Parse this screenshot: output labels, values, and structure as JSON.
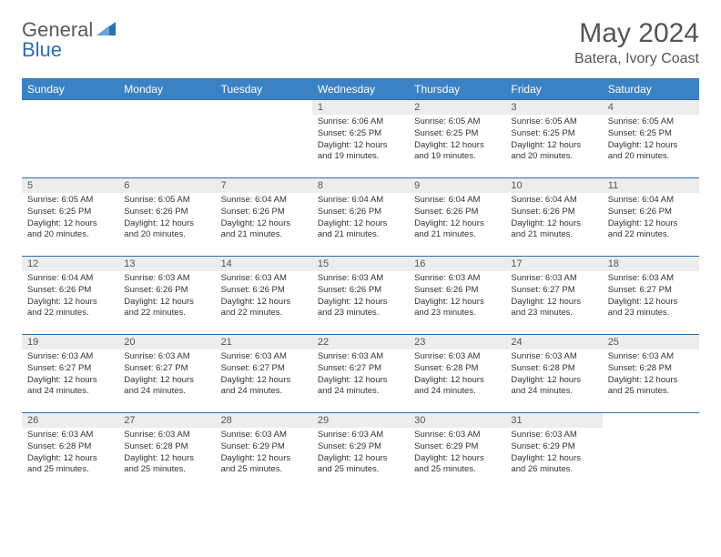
{
  "brand": {
    "part1": "General",
    "part2": "Blue",
    "color_general": "#5a5a5a",
    "color_blue": "#2f6fb0",
    "icon_color": "#2f6fb0"
  },
  "title": "May 2024",
  "location": "Batera, Ivory Coast",
  "header_bg": "#3b82c4",
  "header_text_color": "#ffffff",
  "daynum_bg": "#ededed",
  "border_color": "#2f6fb0",
  "weekdays": [
    "Sunday",
    "Monday",
    "Tuesday",
    "Wednesday",
    "Thursday",
    "Friday",
    "Saturday"
  ],
  "weeks": [
    [
      null,
      null,
      null,
      {
        "n": "1",
        "sr": "Sunrise: 6:06 AM",
        "ss": "Sunset: 6:25 PM",
        "dl1": "Daylight: 12 hours",
        "dl2": "and 19 minutes."
      },
      {
        "n": "2",
        "sr": "Sunrise: 6:05 AM",
        "ss": "Sunset: 6:25 PM",
        "dl1": "Daylight: 12 hours",
        "dl2": "and 19 minutes."
      },
      {
        "n": "3",
        "sr": "Sunrise: 6:05 AM",
        "ss": "Sunset: 6:25 PM",
        "dl1": "Daylight: 12 hours",
        "dl2": "and 20 minutes."
      },
      {
        "n": "4",
        "sr": "Sunrise: 6:05 AM",
        "ss": "Sunset: 6:25 PM",
        "dl1": "Daylight: 12 hours",
        "dl2": "and 20 minutes."
      }
    ],
    [
      {
        "n": "5",
        "sr": "Sunrise: 6:05 AM",
        "ss": "Sunset: 6:25 PM",
        "dl1": "Daylight: 12 hours",
        "dl2": "and 20 minutes."
      },
      {
        "n": "6",
        "sr": "Sunrise: 6:05 AM",
        "ss": "Sunset: 6:26 PM",
        "dl1": "Daylight: 12 hours",
        "dl2": "and 20 minutes."
      },
      {
        "n": "7",
        "sr": "Sunrise: 6:04 AM",
        "ss": "Sunset: 6:26 PM",
        "dl1": "Daylight: 12 hours",
        "dl2": "and 21 minutes."
      },
      {
        "n": "8",
        "sr": "Sunrise: 6:04 AM",
        "ss": "Sunset: 6:26 PM",
        "dl1": "Daylight: 12 hours",
        "dl2": "and 21 minutes."
      },
      {
        "n": "9",
        "sr": "Sunrise: 6:04 AM",
        "ss": "Sunset: 6:26 PM",
        "dl1": "Daylight: 12 hours",
        "dl2": "and 21 minutes."
      },
      {
        "n": "10",
        "sr": "Sunrise: 6:04 AM",
        "ss": "Sunset: 6:26 PM",
        "dl1": "Daylight: 12 hours",
        "dl2": "and 21 minutes."
      },
      {
        "n": "11",
        "sr": "Sunrise: 6:04 AM",
        "ss": "Sunset: 6:26 PM",
        "dl1": "Daylight: 12 hours",
        "dl2": "and 22 minutes."
      }
    ],
    [
      {
        "n": "12",
        "sr": "Sunrise: 6:04 AM",
        "ss": "Sunset: 6:26 PM",
        "dl1": "Daylight: 12 hours",
        "dl2": "and 22 minutes."
      },
      {
        "n": "13",
        "sr": "Sunrise: 6:03 AM",
        "ss": "Sunset: 6:26 PM",
        "dl1": "Daylight: 12 hours",
        "dl2": "and 22 minutes."
      },
      {
        "n": "14",
        "sr": "Sunrise: 6:03 AM",
        "ss": "Sunset: 6:26 PM",
        "dl1": "Daylight: 12 hours",
        "dl2": "and 22 minutes."
      },
      {
        "n": "15",
        "sr": "Sunrise: 6:03 AM",
        "ss": "Sunset: 6:26 PM",
        "dl1": "Daylight: 12 hours",
        "dl2": "and 23 minutes."
      },
      {
        "n": "16",
        "sr": "Sunrise: 6:03 AM",
        "ss": "Sunset: 6:26 PM",
        "dl1": "Daylight: 12 hours",
        "dl2": "and 23 minutes."
      },
      {
        "n": "17",
        "sr": "Sunrise: 6:03 AM",
        "ss": "Sunset: 6:27 PM",
        "dl1": "Daylight: 12 hours",
        "dl2": "and 23 minutes."
      },
      {
        "n": "18",
        "sr": "Sunrise: 6:03 AM",
        "ss": "Sunset: 6:27 PM",
        "dl1": "Daylight: 12 hours",
        "dl2": "and 23 minutes."
      }
    ],
    [
      {
        "n": "19",
        "sr": "Sunrise: 6:03 AM",
        "ss": "Sunset: 6:27 PM",
        "dl1": "Daylight: 12 hours",
        "dl2": "and 24 minutes."
      },
      {
        "n": "20",
        "sr": "Sunrise: 6:03 AM",
        "ss": "Sunset: 6:27 PM",
        "dl1": "Daylight: 12 hours",
        "dl2": "and 24 minutes."
      },
      {
        "n": "21",
        "sr": "Sunrise: 6:03 AM",
        "ss": "Sunset: 6:27 PM",
        "dl1": "Daylight: 12 hours",
        "dl2": "and 24 minutes."
      },
      {
        "n": "22",
        "sr": "Sunrise: 6:03 AM",
        "ss": "Sunset: 6:27 PM",
        "dl1": "Daylight: 12 hours",
        "dl2": "and 24 minutes."
      },
      {
        "n": "23",
        "sr": "Sunrise: 6:03 AM",
        "ss": "Sunset: 6:28 PM",
        "dl1": "Daylight: 12 hours",
        "dl2": "and 24 minutes."
      },
      {
        "n": "24",
        "sr": "Sunrise: 6:03 AM",
        "ss": "Sunset: 6:28 PM",
        "dl1": "Daylight: 12 hours",
        "dl2": "and 24 minutes."
      },
      {
        "n": "25",
        "sr": "Sunrise: 6:03 AM",
        "ss": "Sunset: 6:28 PM",
        "dl1": "Daylight: 12 hours",
        "dl2": "and 25 minutes."
      }
    ],
    [
      {
        "n": "26",
        "sr": "Sunrise: 6:03 AM",
        "ss": "Sunset: 6:28 PM",
        "dl1": "Daylight: 12 hours",
        "dl2": "and 25 minutes."
      },
      {
        "n": "27",
        "sr": "Sunrise: 6:03 AM",
        "ss": "Sunset: 6:28 PM",
        "dl1": "Daylight: 12 hours",
        "dl2": "and 25 minutes."
      },
      {
        "n": "28",
        "sr": "Sunrise: 6:03 AM",
        "ss": "Sunset: 6:29 PM",
        "dl1": "Daylight: 12 hours",
        "dl2": "and 25 minutes."
      },
      {
        "n": "29",
        "sr": "Sunrise: 6:03 AM",
        "ss": "Sunset: 6:29 PM",
        "dl1": "Daylight: 12 hours",
        "dl2": "and 25 minutes."
      },
      {
        "n": "30",
        "sr": "Sunrise: 6:03 AM",
        "ss": "Sunset: 6:29 PM",
        "dl1": "Daylight: 12 hours",
        "dl2": "and 25 minutes."
      },
      {
        "n": "31",
        "sr": "Sunrise: 6:03 AM",
        "ss": "Sunset: 6:29 PM",
        "dl1": "Daylight: 12 hours",
        "dl2": "and 26 minutes."
      },
      null
    ]
  ]
}
